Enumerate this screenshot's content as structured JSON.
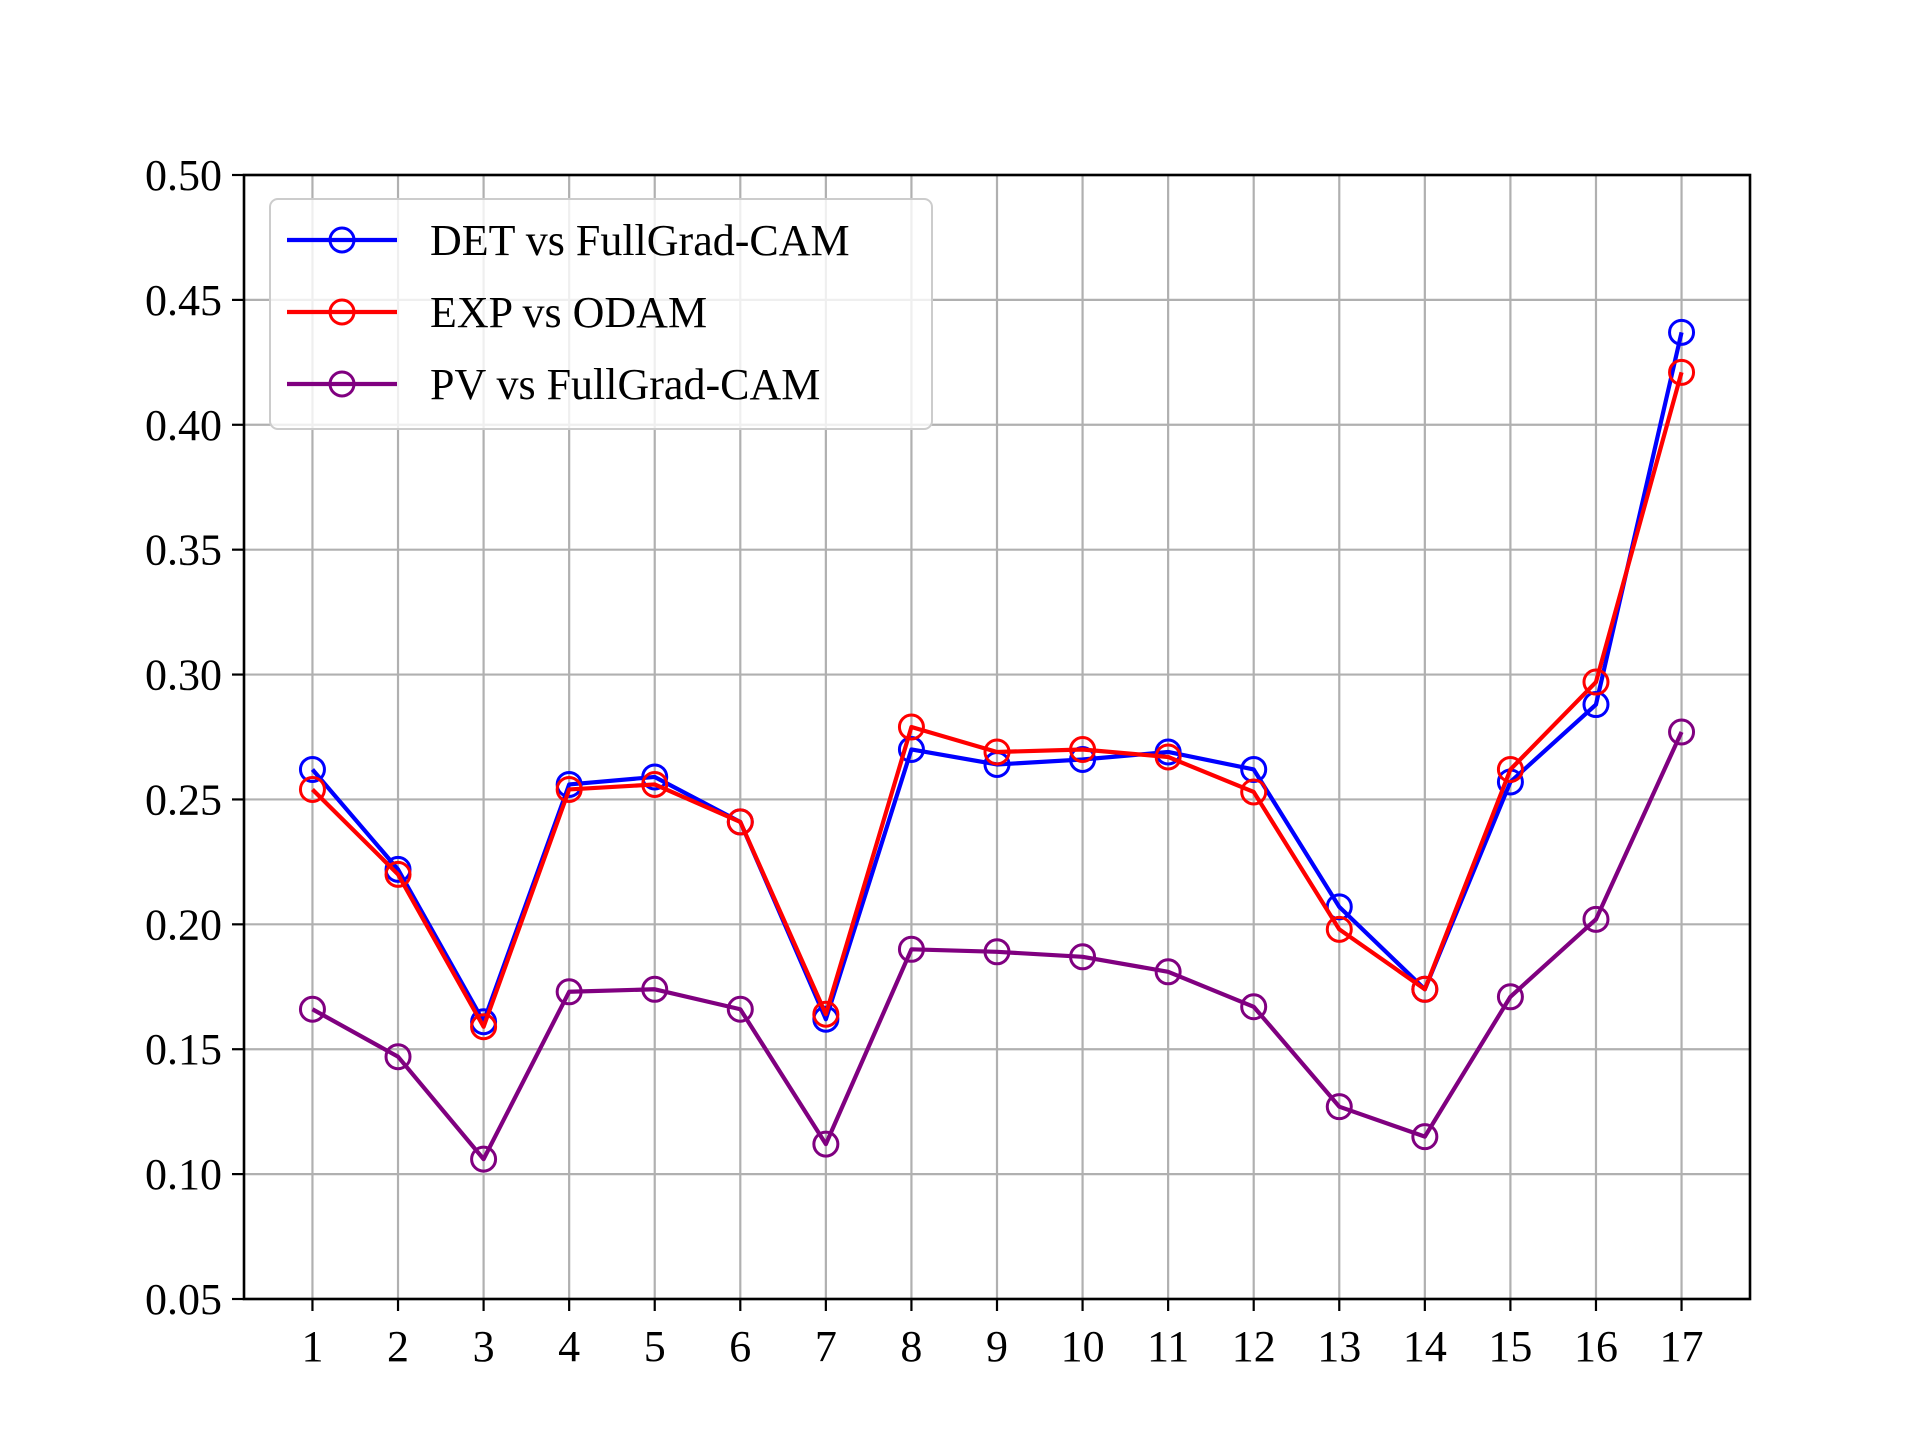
{
  "chart_data": {
    "type": "line",
    "title": "",
    "xlabel": "",
    "ylabel": "",
    "x": [
      1,
      2,
      3,
      4,
      5,
      6,
      7,
      8,
      9,
      10,
      11,
      12,
      13,
      14,
      15,
      16,
      17
    ],
    "x_tick_labels": [
      "1",
      "2",
      "3",
      "4",
      "5",
      "6",
      "7",
      "8",
      "9",
      "10",
      "11",
      "12",
      "13",
      "14",
      "15",
      "16",
      "17"
    ],
    "ylim": [
      0.05,
      0.5
    ],
    "y_ticks": [
      0.05,
      0.1,
      0.15,
      0.2,
      0.25,
      0.3,
      0.35,
      0.4,
      0.45,
      0.5
    ],
    "y_tick_labels": [
      "0.05",
      "0.10",
      "0.15",
      "0.20",
      "0.25",
      "0.30",
      "0.35",
      "0.40",
      "0.45",
      "0.50"
    ],
    "grid": true,
    "legend_position": "top-left",
    "marker": "hollow-circle",
    "series": [
      {
        "name": "DET vs FullGrad-CAM",
        "color": "#0000ff",
        "values": [
          0.262,
          0.222,
          0.161,
          0.256,
          0.259,
          0.241,
          0.162,
          0.27,
          0.264,
          0.266,
          0.269,
          0.262,
          0.207,
          0.174,
          0.257,
          0.288,
          0.437
        ]
      },
      {
        "name": "EXP vs ODAM",
        "color": "#ff0000",
        "values": [
          0.254,
          0.22,
          0.159,
          0.254,
          0.256,
          0.241,
          0.164,
          0.279,
          0.269,
          0.27,
          0.267,
          0.253,
          0.198,
          0.174,
          0.262,
          0.297,
          0.421
        ]
      },
      {
        "name": "PV vs FullGrad-CAM",
        "color": "#800080",
        "values": [
          0.166,
          0.147,
          0.106,
          0.173,
          0.174,
          0.166,
          0.112,
          0.19,
          0.189,
          0.187,
          0.181,
          0.167,
          0.127,
          0.115,
          0.171,
          0.202,
          0.277
        ]
      }
    ]
  }
}
